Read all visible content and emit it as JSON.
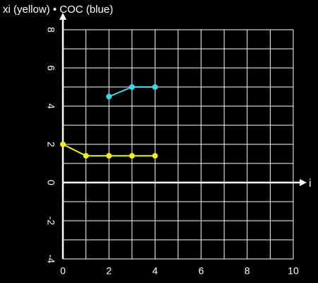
{
  "chart_data": {
    "type": "line",
    "title": "xi (yellow) • COC (blue)",
    "x_label": "i",
    "series": [
      {
        "color": "#f2ee1a",
        "x": [
          0,
          1,
          2,
          3,
          4
        ],
        "values": [
          2,
          1.4,
          1.4,
          1.4,
          1.4
        ]
      },
      {
        "color": "#3fd6e6",
        "x": [
          2,
          3,
          4
        ],
        "values": [
          4.5,
          5,
          5
        ]
      }
    ],
    "xlim": [
      0,
      10
    ],
    "ylim": [
      -4,
      8
    ],
    "xticks": [
      0,
      2,
      4,
      6,
      8,
      10
    ],
    "yticks": [
      -4,
      -2,
      0,
      2,
      4,
      6,
      8
    ],
    "xgrid": [
      0,
      1,
      2,
      3,
      4,
      5,
      6,
      7,
      8,
      9,
      10
    ],
    "ygrid": [
      -4,
      -3,
      -2,
      -1,
      0,
      1,
      2,
      3,
      4,
      5,
      6,
      7,
      8
    ],
    "grid": true
  }
}
